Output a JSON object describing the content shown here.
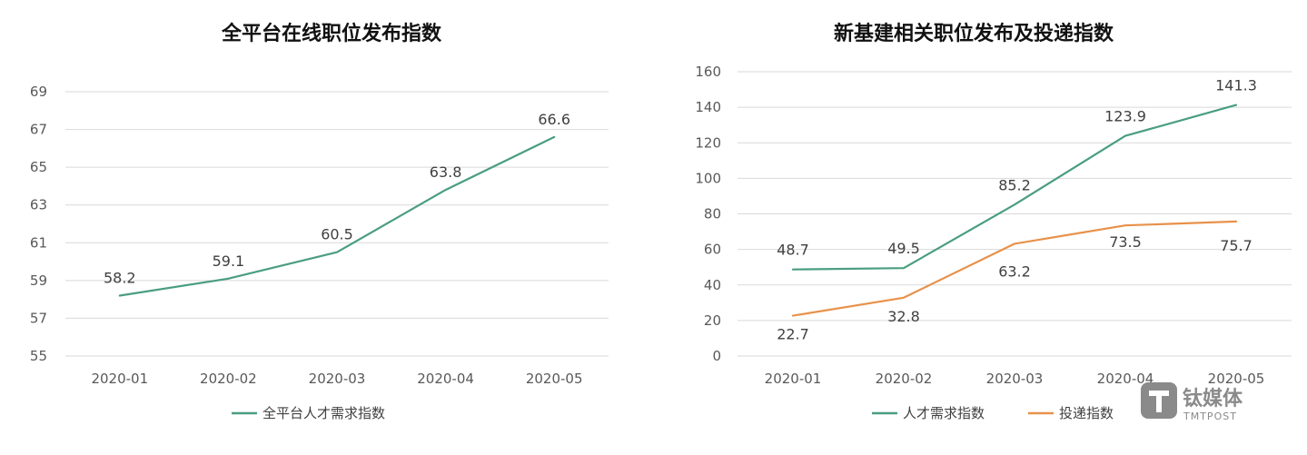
{
  "chart_data": [
    {
      "type": "line",
      "title": "全平台在线职位发布指数",
      "categories": [
        "2020-01",
        "2020-02",
        "2020-03",
        "2020-04",
        "2020-05"
      ],
      "ylim": [
        55,
        69
      ],
      "yticks": [
        55,
        57,
        59,
        61,
        63,
        65,
        67,
        69
      ],
      "grid": true,
      "legend_position": "bottom",
      "series": [
        {
          "name": "全平台人才需求指数",
          "color": "#4a9e7f",
          "values": [
            58.2,
            59.1,
            60.5,
            63.8,
            66.6
          ],
          "labels": [
            "58.2",
            "59.1",
            "60.5",
            "63.8",
            "66.6"
          ]
        }
      ]
    },
    {
      "type": "line",
      "title": "新基建相关职位发布及投递指数",
      "categories": [
        "2020-01",
        "2020-02",
        "2020-03",
        "2020-04",
        "2020-05"
      ],
      "ylim": [
        0,
        160
      ],
      "yticks": [
        0,
        20,
        40,
        60,
        80,
        100,
        120,
        140,
        160
      ],
      "grid": true,
      "legend_position": "bottom",
      "series": [
        {
          "name": "人才需求指数",
          "color": "#4a9e7f",
          "values": [
            48.7,
            49.5,
            85.2,
            123.9,
            141.3
          ],
          "labels": [
            "48.7",
            "49.5",
            "85.2",
            "123.9",
            "141.3"
          ]
        },
        {
          "name": "投递指数",
          "color": "#e8914a",
          "values": [
            22.7,
            32.8,
            63.2,
            73.5,
            75.7
          ],
          "labels": [
            "22.7",
            "32.8",
            "63.2",
            "73.5",
            "75.7"
          ]
        }
      ]
    }
  ],
  "watermark": {
    "icon": "tmtpost-logo-icon",
    "text": "钛媒体",
    "sub": "TMTPOST"
  }
}
